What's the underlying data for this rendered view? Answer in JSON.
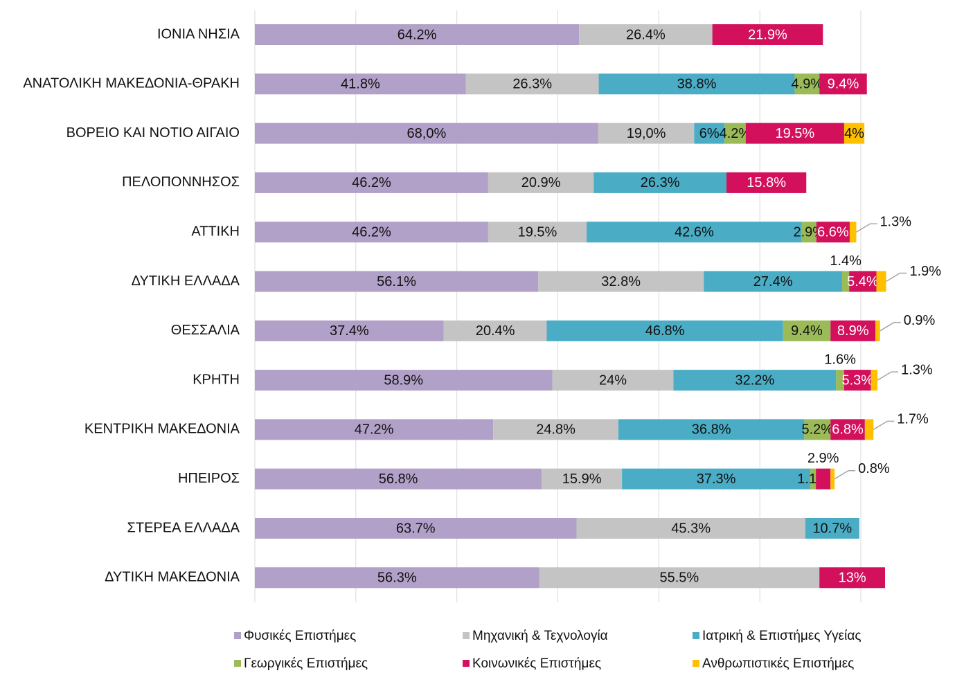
{
  "chart_data": {
    "type": "stacked-bar-horizontal",
    "categories": [
      "ΙΟΝΙΑ ΝΗΣΙΑ",
      "ΑΝΑΤΟΛΙΚΗ ΜΑΚΕΔΟΝΙΑ-ΘΡΑΚΗ",
      "ΒΟΡΕΙΟ ΚΑΙ ΝΟΤΙΟ ΑΙΓΑΙΟ",
      "ΠΕΛΟΠΟΝΝΗΣΟΣ",
      "ΑΤΤΙΚΗ",
      "ΔΥΤΙΚΗ ΕΛΛΑΔΑ",
      "ΘΕΣΣΑΛΙΑ",
      "ΚΡΗΤΗ",
      "ΚΕΝΤΡΙΚΗ ΜΑΚΕΔΟΝΙΑ",
      "ΗΠΕΙΡΟΣ",
      "ΣΤΕΡΕΑ ΕΛΛΑΔΑ",
      "ΔΥΤΙΚΗ ΜΑΚΕΔΟΝΙΑ"
    ],
    "series": [
      {
        "name": "Φυσικές Επιστήμες",
        "color": "#b1a0c7",
        "values": [
          64.2,
          41.8,
          68.0,
          46.2,
          46.2,
          56.1,
          37.4,
          58.9,
          47.2,
          56.8,
          63.7,
          56.3
        ],
        "value_labels": [
          "64.2%",
          "41.8%",
          "68,0%",
          "46.2%",
          "46.2%",
          "56.1%",
          "37.4%",
          "58.9%",
          "47.2%",
          "56.8%",
          "63.7%",
          "56.3%"
        ]
      },
      {
        "name": "Μηχανική & Τεχνολογία",
        "color": "#c4c4c4",
        "values": [
          26.4,
          26.3,
          19.0,
          20.9,
          19.5,
          32.8,
          20.4,
          24,
          24.8,
          15.9,
          45.3,
          55.5
        ],
        "value_labels": [
          "26.4%",
          "26.3%",
          "19,0%",
          "20.9%",
          "19.5%",
          "32.8%",
          "20.4%",
          "24%",
          "24.8%",
          "15.9%",
          "45.3%",
          "55.5%"
        ]
      },
      {
        "name": "Ιατρική & Επιστήμες Υγείας",
        "color": "#4aacc5",
        "values": [
          null,
          38.8,
          6,
          26.3,
          42.6,
          27.4,
          46.8,
          32.2,
          36.8,
          37.3,
          10.7,
          null
        ],
        "value_labels": [
          null,
          "38.8%",
          "6%",
          "26.3%",
          "42.6%",
          "27.4%",
          "46.8%",
          "32.2%",
          "36.8%",
          "37.3%",
          "10.7%",
          null
        ]
      },
      {
        "name": "Γεωργικές Επιστήμες",
        "color": "#9bbb59",
        "values": [
          null,
          4.9,
          4.2,
          null,
          2.9,
          1.4,
          9.4,
          1.6,
          5.2,
          1.1,
          null,
          null
        ],
        "value_labels": [
          null,
          "4.9%",
          "4.2%",
          null,
          "2.9%",
          "1.4%",
          "9.4%",
          "1.6%",
          "5.2%",
          "1.1%",
          null,
          null
        ]
      },
      {
        "name": "Κοινωνικές Επιστήμες",
        "color": "#d2105c",
        "values": [
          21.9,
          9.4,
          19.5,
          15.8,
          6.6,
          5.4,
          8.9,
          5.3,
          6.8,
          2.9,
          null,
          13
        ],
        "value_labels": [
          "21.9%",
          "9.4%",
          "19.5%",
          "15.8%",
          "6.6%",
          "5.4%",
          "8.9%",
          "5.3%",
          "6.8%",
          "2.9%",
          null,
          "13%"
        ]
      },
      {
        "name": "Ανθρωπιστικές Επιστήμες",
        "color": "#ffc000",
        "values": [
          null,
          null,
          4,
          null,
          1.3,
          1.9,
          0.9,
          1.3,
          1.7,
          0.8,
          null,
          null
        ],
        "value_labels": [
          null,
          null,
          "4%",
          null,
          "1.3%",
          "1.9%",
          "0.9%",
          "1.3%",
          "1.7%",
          "0.8%",
          null,
          null
        ]
      }
    ],
    "xlim": [
      0,
      120
    ],
    "xticks": [
      0,
      20,
      40,
      60,
      80,
      100,
      120
    ],
    "grid": true,
    "legend": "bottom"
  }
}
